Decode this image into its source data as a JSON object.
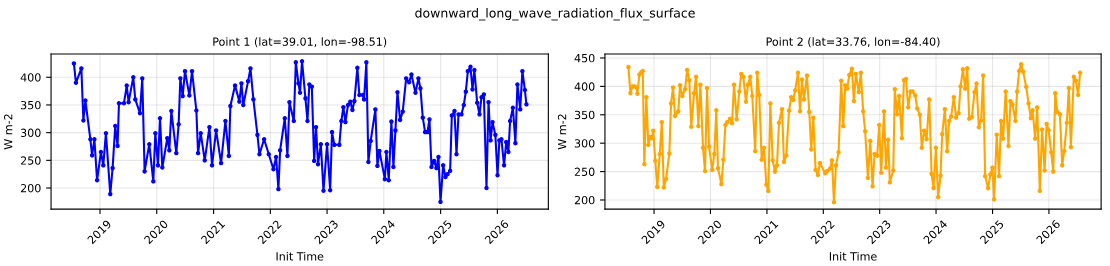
{
  "chart_data": [
    {
      "type": "line",
      "title": "Point 1 (lat=39.01, lon=-98.51)",
      "xlabel": "Init Time",
      "ylabel": "W m-2",
      "annotations": [
        "downward_long_wave_radiation_flux_surface"
      ],
      "xlim": [
        "2018-02-20",
        "2026-11-25"
      ],
      "xticks": [
        {
          "value": "2019-01-01",
          "label": "2019"
        },
        {
          "value": "2020-01-01",
          "label": "2020"
        },
        {
          "value": "2021-01-01",
          "label": "2021"
        },
        {
          "value": "2022-01-01",
          "label": "2022"
        },
        {
          "value": "2023-01-01",
          "label": "2023"
        },
        {
          "value": "2024-01-01",
          "label": "2024"
        },
        {
          "value": "2025-01-01",
          "label": "2025"
        },
        {
          "value": "2026-01-01",
          "label": "2026"
        }
      ],
      "ylim": [
        162,
        442
      ],
      "yticks": [
        200,
        250,
        300,
        350,
        400
      ],
      "grid": true,
      "marker": "circle",
      "line_style": "solid",
      "series": [
        {
          "color": "#0000ff",
          "x": [
            "2018-07-17",
            "2018-07-30",
            "2018-09-03",
            "2018-09-16",
            "2018-09-29",
            "2018-10-31",
            "2018-11-11",
            "2018-11-26",
            "2018-12-13",
            "2019-01-07",
            "2019-01-22",
            "2019-02-08",
            "2019-03-08",
            "2019-03-23",
            "2019-04-09",
            "2019-04-24",
            "2019-05-03",
            "2019-06-04",
            "2019-06-22",
            "2019-07-04",
            "2019-08-03",
            "2019-08-16",
            "2019-09-15",
            "2019-09-30",
            "2019-10-15",
            "2019-11-14",
            "2019-12-10",
            "2019-12-23",
            "2020-01-09",
            "2020-01-22",
            "2020-02-06",
            "2020-03-09",
            "2020-03-22",
            "2020-04-04",
            "2020-05-06",
            "2020-05-21",
            "2020-06-01",
            "2020-06-16",
            "2020-07-01",
            "2020-07-29",
            "2020-08-15",
            "2020-09-12",
            "2020-09-23",
            "2020-10-10",
            "2020-11-05",
            "2020-12-05",
            "2020-12-22",
            "2021-01-17",
            "2021-02-18",
            "2021-03-18",
            "2021-04-09",
            "2021-04-19",
            "2021-05-19",
            "2021-06-16",
            "2021-06-29",
            "2021-07-11",
            "2021-08-11",
            "2021-08-26",
            "2021-09-14",
            "2021-10-10",
            "2021-10-23",
            "2021-11-22",
            "2021-12-22",
            "2022-01-21",
            "2022-02-07",
            "2022-02-22",
            "2022-03-05",
            "2022-04-04",
            "2022-04-21",
            "2022-05-04",
            "2022-06-01",
            "2022-06-14",
            "2022-07-01",
            "2022-07-11",
            "2022-07-24",
            "2022-08-15",
            "2022-08-28",
            "2022-09-09",
            "2022-09-25",
            "2022-10-10",
            "2022-10-22",
            "2022-11-04",
            "2022-11-22",
            "2022-12-09",
            "2023-01-01",
            "2023-01-21",
            "2023-02-02",
            "2023-02-17",
            "2023-03-21",
            "2023-04-03",
            "2023-04-16",
            "2023-04-29",
            "2023-05-16",
            "2023-05-31",
            "2023-06-13",
            "2023-06-26",
            "2023-07-15",
            "2023-07-28",
            "2023-08-19",
            "2023-08-27",
            "2023-09-11",
            "2023-09-24",
            "2023-10-09",
            "2023-11-08",
            "2023-11-21",
            "2023-12-04",
            "2024-01-08",
            "2024-01-18",
            "2024-02-02",
            "2024-02-19",
            "2024-03-03",
            "2024-03-16",
            "2024-03-29",
            "2024-04-15",
            "2024-05-02",
            "2024-05-24",
            "2024-06-12",
            "2024-06-27",
            "2024-07-23",
            "2024-08-11",
            "2024-08-24",
            "2024-09-08",
            "2024-09-23",
            "2024-10-08",
            "2024-10-21",
            "2024-11-03",
            "2024-11-20",
            "2024-12-05",
            "2024-12-18",
            "2024-12-31",
            "2025-01-17",
            "2025-02-01",
            "2025-02-14",
            "2025-03-03",
            "2025-03-14",
            "2025-03-31",
            "2025-04-13",
            "2025-04-26",
            "2025-05-15",
            "2025-05-30",
            "2025-06-12",
            "2025-06-25",
            "2025-07-12",
            "2025-07-25",
            "2025-08-06",
            "2025-08-24",
            "2025-09-08",
            "2025-09-21",
            "2025-10-06",
            "2025-10-23",
            "2025-11-05",
            "2025-11-18",
            "2025-12-01",
            "2025-12-19",
            "2026-01-02",
            "2026-01-14",
            "2026-01-27",
            "2026-02-13",
            "2026-02-27",
            "2026-03-13",
            "2026-03-24",
            "2026-04-11",
            "2026-04-27",
            "2026-05-10",
            "2026-05-28",
            "2026-06-11",
            "2026-06-27",
            "2026-07-07"
          ],
          "values": [
            425,
            390,
            416,
            322,
            358,
            288,
            259,
            288,
            214,
            265,
            241,
            299,
            189,
            236,
            312,
            276,
            353,
            353,
            385,
            355,
            400,
            360,
            335,
            398,
            230,
            279,
            212,
            299,
            241,
            326,
            237,
            290,
            268,
            339,
            263,
            315,
            398,
            366,
            411,
            367,
            411,
            340,
            263,
            299,
            250,
            310,
            241,
            304,
            245,
            321,
            258,
            348,
            385,
            356,
            389,
            350,
            393,
            416,
            360,
            296,
            261,
            288,
            261,
            234,
            256,
            198,
            268,
            326,
            258,
            355,
            321,
            427,
            389,
            372,
            429,
            362,
            321,
            387,
            383,
            249,
            310,
            243,
            279,
            195,
            279,
            196,
            301,
            278,
            278,
            321,
            346,
            319,
            350,
            356,
            341,
            357,
            417,
            368,
            368,
            360,
            427,
            247,
            285,
            342,
            240,
            267,
            216,
            265,
            214,
            320,
            238,
            304,
            373,
            323,
            338,
            398,
            391,
            405,
            372,
            398,
            380,
            327,
            301,
            301,
            324,
            238,
            249,
            236,
            256,
            175,
            241,
            220,
            225,
            231,
            331,
            339,
            261,
            333,
            333,
            350,
            374,
            411,
            419,
            378,
            413,
            354,
            333,
            364,
            369,
            200,
            355,
            286,
            319,
            296,
            223,
            286,
            288,
            241,
            283,
            265,
            321,
            345,
            281,
            387,
            342,
            411,
            377,
            351
          ]
        }
      ]
    },
    {
      "type": "line",
      "title": "Point 2 (lat=33.76, lon=-84.40)",
      "xlabel": "Init Time",
      "ylabel": "W m-2",
      "xlim": [
        "2018-02-17",
        "2026-12-05"
      ],
      "xticks": [
        {
          "value": "2019-01-01",
          "label": "2019"
        },
        {
          "value": "2020-01-01",
          "label": "2020"
        },
        {
          "value": "2021-01-01",
          "label": "2021"
        },
        {
          "value": "2022-01-01",
          "label": "2022"
        },
        {
          "value": "2023-01-01",
          "label": "2023"
        },
        {
          "value": "2024-01-01",
          "label": "2024"
        },
        {
          "value": "2025-01-01",
          "label": "2025"
        },
        {
          "value": "2026-01-01",
          "label": "2026"
        }
      ],
      "ylim": [
        184,
        457
      ],
      "yticks": [
        200,
        250,
        300,
        350,
        400,
        450
      ],
      "grid": true,
      "marker": "circle",
      "line_style": "solid",
      "series": [
        {
          "color": "#ffa500",
          "x": [
            "2018-07-19",
            "2018-08-01",
            "2018-08-14",
            "2018-08-27",
            "2018-09-09",
            "2018-09-15",
            "2018-09-28",
            "2018-10-11",
            "2018-10-20",
            "2018-10-30",
            "2018-11-12",
            "2018-11-25",
            "2018-12-08",
            "2018-12-17",
            "2018-12-27",
            "2019-01-09",
            "2019-01-22",
            "2019-02-07",
            "2019-02-20",
            "2019-03-05",
            "2019-03-20",
            "2019-04-10",
            "2019-04-21",
            "2019-05-04",
            "2019-05-17",
            "2019-06-07",
            "2019-06-18",
            "2019-07-03",
            "2019-07-21",
            "2019-08-03",
            "2019-08-17",
            "2019-08-30",
            "2019-09-17",
            "2019-09-30",
            "2019-10-15",
            "2019-10-28",
            "2019-11-14",
            "2019-11-27",
            "2019-12-10",
            "2019-12-23",
            "2020-01-13",
            "2020-01-26",
            "2020-02-08",
            "2020-02-19",
            "2020-03-12",
            "2020-03-25",
            "2020-04-07",
            "2020-04-19",
            "2020-05-07",
            "2020-05-20",
            "2020-06-02",
            "2020-06-19",
            "2020-07-06",
            "2020-07-19",
            "2020-08-01",
            "2020-08-18",
            "2020-08-31",
            "2020-09-15",
            "2020-09-28",
            "2020-10-17",
            "2020-10-30",
            "2020-11-12",
            "2020-11-28",
            "2020-12-13",
            "2020-12-28",
            "2021-01-10",
            "2021-01-23",
            "2021-02-07",
            "2021-02-22",
            "2021-03-07",
            "2021-03-20",
            "2021-04-09",
            "2021-04-21",
            "2021-05-06",
            "2021-05-24",
            "2021-06-07",
            "2021-06-20",
            "2021-07-03",
            "2021-07-21",
            "2021-08-03",
            "2021-08-16",
            "2021-08-29",
            "2021-09-17",
            "2021-10-02",
            "2021-10-15",
            "2021-10-28",
            "2021-11-12",
            "2021-11-27",
            "2021-12-10",
            "2022-01-13",
            "2022-01-26",
            "2022-02-13",
            "2022-02-26",
            "2022-03-11",
            "2022-03-24",
            "2022-04-10",
            "2022-04-27",
            "2022-05-10",
            "2022-05-23",
            "2022-06-05",
            "2022-06-18",
            "2022-07-05",
            "2022-07-18",
            "2022-07-31",
            "2022-08-19",
            "2022-09-01",
            "2022-09-16",
            "2022-09-29",
            "2022-10-17",
            "2022-11-01",
            "2022-11-16",
            "2022-11-29",
            "2022-12-16",
            "2022-12-29",
            "2023-01-11",
            "2023-01-29",
            "2023-02-11",
            "2023-02-25",
            "2023-03-08",
            "2023-03-30",
            "2023-04-09",
            "2023-04-24",
            "2023-05-07",
            "2023-05-25",
            "2023-06-07",
            "2023-06-20",
            "2023-07-05",
            "2023-07-20",
            "2023-08-02",
            "2023-08-19",
            "2023-09-01",
            "2023-09-18",
            "2023-10-01",
            "2023-10-16",
            "2023-11-01",
            "2023-11-18",
            "2023-12-03",
            "2023-12-16",
            "2023-12-31",
            "2024-01-15",
            "2024-01-30",
            "2024-02-10",
            "2024-02-27",
            "2024-03-13",
            "2024-03-26",
            "2024-04-08",
            "2024-04-25",
            "2024-05-10",
            "2024-05-26",
            "2024-06-08",
            "2024-06-23",
            "2024-07-08",
            "2024-07-21",
            "2024-08-03",
            "2024-08-20",
            "2024-09-06",
            "2024-09-19",
            "2024-10-04",
            "2024-10-19",
            "2024-11-01",
            "2024-11-14",
            "2024-12-03",
            "2024-12-18",
            "2024-12-31",
            "2025-01-11",
            "2025-01-28",
            "2025-02-12",
            "2025-02-25",
            "2025-03-10",
            "2025-03-27",
            "2025-04-14",
            "2025-04-27",
            "2025-05-10",
            "2025-05-29",
            "2025-06-09",
            "2025-06-22",
            "2025-07-05",
            "2025-07-18",
            "2025-08-07",
            "2025-08-22",
            "2025-09-06",
            "2025-09-17",
            "2025-10-04",
            "2025-10-17",
            "2025-11-03",
            "2025-11-18",
            "2025-12-04",
            "2025-12-17",
            "2025-12-30",
            "2026-01-16",
            "2026-01-29",
            "2026-02-11",
            "2026-02-24",
            "2026-03-13",
            "2026-03-28",
            "2026-04-10",
            "2026-04-27",
            "2026-05-10",
            "2026-05-23",
            "2026-06-11",
            "2026-06-24",
            "2026-07-09",
            "2026-07-22"
          ],
          "values": [
            434,
            388,
            400,
            400,
            398,
            387,
            421,
            425,
            427,
            263,
            381,
            297,
            311,
            309,
            322,
            269,
            223,
            281,
            337,
            222,
            237,
            282,
            370,
            398,
            348,
            356,
            402,
            383,
            395,
            429,
            411,
            329,
            388,
            417,
            330,
            403,
            292,
            251,
            397,
            294,
            253,
            281,
            358,
            256,
            228,
            271,
            332,
            337,
            343,
            335,
            403,
            342,
            391,
            422,
            417,
            373,
            403,
            417,
            383,
            286,
            424,
            385,
            271,
            292,
            227,
            216,
            370,
            270,
            250,
            261,
            336,
            360,
            267,
            278,
            357,
            381,
            376,
            393,
            424,
            356,
            412,
            377,
            419,
            355,
            289,
            345,
            253,
            244,
            265,
            247,
            251,
            255,
            270,
            196,
            261,
            284,
            410,
            330,
            402,
            396,
            420,
            431,
            374,
            422,
            390,
            424,
            356,
            321,
            239,
            304,
            224,
            281,
            278,
            332,
            248,
            356,
            257,
            306,
            231,
            252,
            395,
            351,
            383,
            309,
            411,
            413,
            363,
            391,
            391,
            384,
            361,
            350,
            292,
            322,
            307,
            377,
            246,
            221,
            292,
            205,
            243,
            316,
            360,
            286,
            339,
            347,
            381,
            345,
            353,
            400,
            430,
            396,
            432,
            343,
            346,
            390,
            405,
            328,
            340,
            419,
            242,
            221,
            245,
            257,
            201,
            315,
            242,
            339,
            308,
            391,
            295,
            374,
            368,
            339,
            391,
            427,
            439,
            426,
            399,
            370,
            344,
            358,
            308,
            363,
            216,
            324,
            252,
            334,
            323,
            284,
            250,
            388,
            355,
            351,
            261,
            286,
            336,
            397,
            293,
            417,
            410,
            385,
            424
          ]
        }
      ]
    }
  ]
}
